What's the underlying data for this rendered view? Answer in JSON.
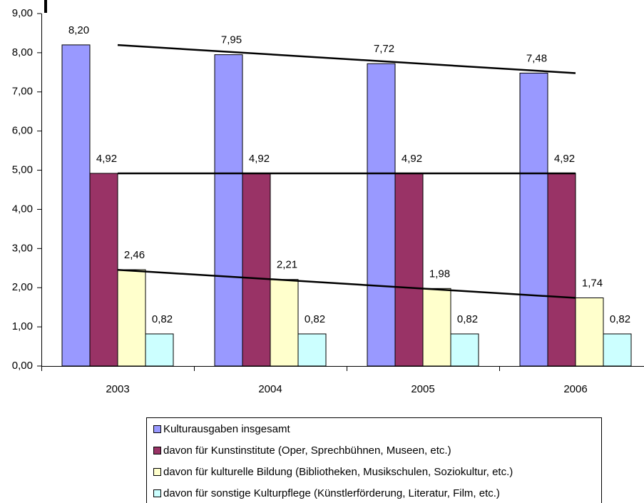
{
  "chart_data": {
    "type": "bar",
    "categories": [
      "2003",
      "2004",
      "2005",
      "2006"
    ],
    "series": [
      {
        "name": "Kulturausgaben insgesamt",
        "color": "#9999ff",
        "values": [
          8.2,
          7.95,
          7.72,
          7.48
        ],
        "value_labels": [
          "8,20",
          "7,95",
          "7,72",
          "7,48"
        ],
        "trendline": true
      },
      {
        "name": "davon für Kunstinstitute (Oper, Sprechbühnen, Museen, etc.)",
        "color": "#993366",
        "values": [
          4.92,
          4.92,
          4.92,
          4.92
        ],
        "value_labels": [
          "4,92",
          "4,92",
          "4,92",
          "4,92"
        ],
        "trendline": true
      },
      {
        "name": "davon für kulturelle Bildung (Bibliotheken, Musikschulen, Soziokultur, etc.)",
        "color": "#ffffcc",
        "values": [
          2.46,
          2.21,
          1.98,
          1.74
        ],
        "value_labels": [
          "2,46",
          "2,21",
          "1,98",
          "1,74"
        ],
        "trendline": true
      },
      {
        "name": "davon für sonstige Kulturpflege (Künstlerförderung, Literatur, Film, etc.)",
        "color": "#ccffff",
        "values": [
          0.82,
          0.82,
          0.82,
          0.82
        ],
        "value_labels": [
          "0,82",
          "0,82",
          "0,82",
          "0,82"
        ],
        "trendline": false
      }
    ],
    "ylim": [
      0,
      9
    ],
    "yticks": [
      {
        "value": 0,
        "label": "0,00"
      },
      {
        "value": 1,
        "label": "1,00"
      },
      {
        "value": 2,
        "label": "2,00"
      },
      {
        "value": 3,
        "label": "3,00"
      },
      {
        "value": 4,
        "label": "4,00"
      },
      {
        "value": 5,
        "label": "5,00"
      },
      {
        "value": 6,
        "label": "6,00"
      },
      {
        "value": 7,
        "label": "7,00"
      },
      {
        "value": 8,
        "label": "8,00"
      },
      {
        "value": 9,
        "label": "9,00"
      }
    ],
    "grid": false,
    "legend": "bottom"
  }
}
